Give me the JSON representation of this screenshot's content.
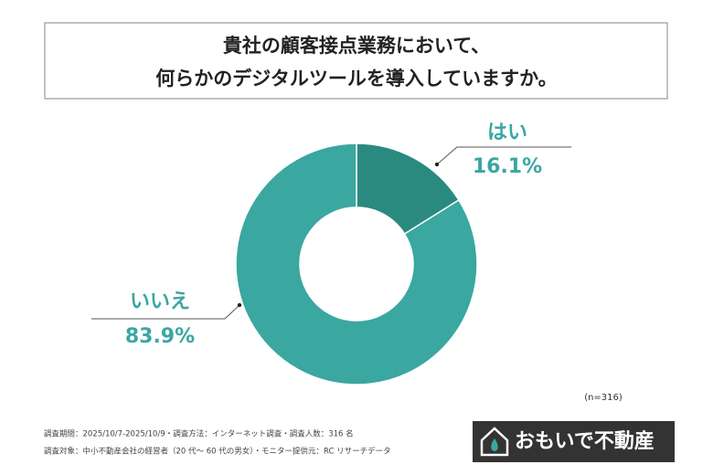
{
  "chart_data": {
    "type": "donut",
    "title": [
      "貴社の顧客接点業務において、",
      "何らかのデジタルツールを導入していますか。"
    ],
    "categories": [
      "はい",
      "いいえ"
    ],
    "values": [
      16.1,
      83.9
    ],
    "value_labels": [
      "16.1%",
      "83.9%"
    ],
    "colors": [
      "#2a8a80",
      "#3aa7a1"
    ],
    "sample_note": "(n=316)",
    "footnotes": [
      "調査期間：2025/10/7-2025/10/9・調査方法：インターネット調査・調査人数：316 名",
      "調査対象：中小不動産会社の経営者（20 代～ 60 代の男女）・モニター提供元：RC リサーチデータ"
    ],
    "brand": "おもいで不動産"
  }
}
